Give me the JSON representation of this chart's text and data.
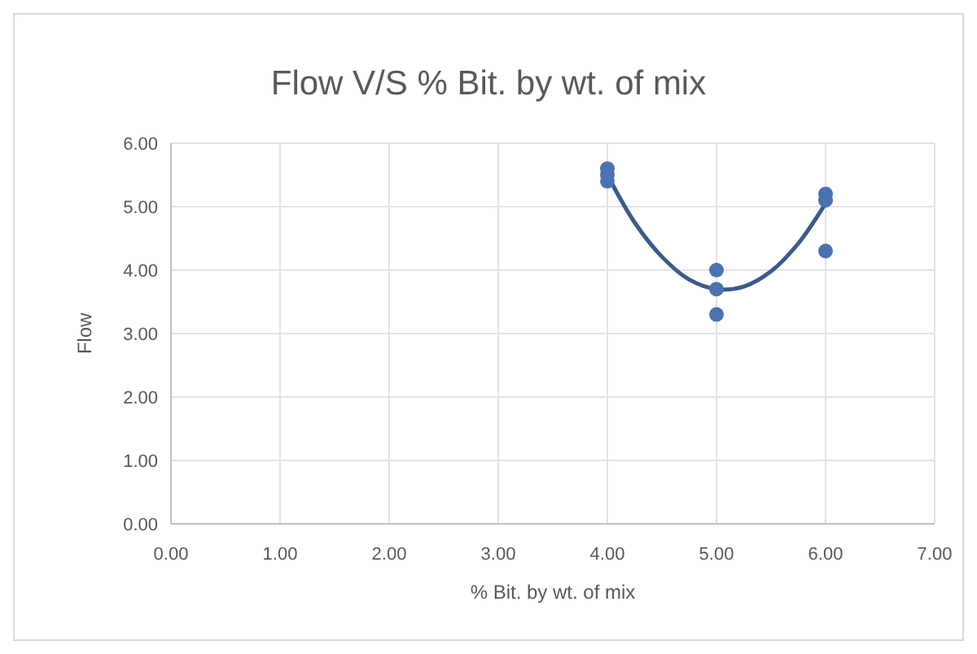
{
  "chart_data": {
    "type": "scatter",
    "title": "Flow V/S % Bit. by wt. of mix",
    "xlabel": "% Bit. by wt. of mix",
    "ylabel": "Flow",
    "xlim": [
      0,
      7
    ],
    "xticks": [
      {
        "value": 0,
        "label": "0.00"
      },
      {
        "value": 1,
        "label": "1.00"
      },
      {
        "value": 2,
        "label": "2.00"
      },
      {
        "value": 3,
        "label": "3.00"
      },
      {
        "value": 4,
        "label": "4.00"
      },
      {
        "value": 5,
        "label": "5.00"
      },
      {
        "value": 6,
        "label": "6.00"
      },
      {
        "value": 7,
        "label": "7.00"
      }
    ],
    "ylim": [
      0,
      6
    ],
    "yticks": [
      {
        "value": 0,
        "label": "0.00"
      },
      {
        "value": 1,
        "label": "1.00"
      },
      {
        "value": 2,
        "label": "2.00"
      },
      {
        "value": 3,
        "label": "3.00"
      },
      {
        "value": 4,
        "label": "4.00"
      },
      {
        "value": 5,
        "label": "5.00"
      },
      {
        "value": 6,
        "label": "6.00"
      }
    ],
    "grid": true,
    "marker": "circle",
    "series": [
      {
        "color": "#4a72b0",
        "x": [
          4,
          4,
          4,
          5,
          5,
          5,
          6,
          6,
          6
        ],
        "values": [
          5.6,
          5.5,
          5.4,
          4.0,
          3.7,
          3.3,
          5.2,
          5.1,
          4.3
        ]
      },
      {
        "type": "line",
        "color": "#3b5a8c",
        "line_style": "solid",
        "marker": "none",
        "x": [
          4,
          4.25,
          4.5,
          4.75,
          5,
          5.25,
          5.5,
          5.75,
          6
        ],
        "values": [
          5.5,
          4.75,
          4.21,
          3.85,
          3.7,
          3.74,
          3.98,
          4.42,
          5.05
        ]
      }
    ]
  }
}
